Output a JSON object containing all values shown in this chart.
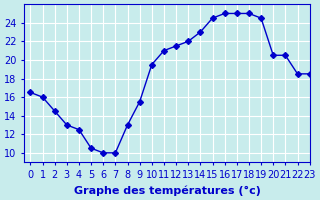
{
  "hours": [
    0,
    1,
    2,
    3,
    4,
    5,
    6,
    7,
    8,
    9,
    10,
    11,
    12,
    13,
    14,
    15,
    16,
    17,
    18,
    19,
    20,
    21,
    22,
    23
  ],
  "temperatures": [
    16.5,
    16.0,
    14.5,
    13.0,
    12.5,
    10.5,
    10.0,
    10.0,
    13.0,
    15.5,
    19.5,
    21.0,
    21.5,
    22.0,
    23.0,
    24.5,
    25.0,
    25.0,
    25.0,
    24.5,
    20.5,
    20.5,
    18.5,
    18.5
  ],
  "line_color": "#0000cc",
  "marker": "D",
  "marker_size": 3,
  "bg_color": "#c8ecec",
  "grid_color": "#ffffff",
  "xlabel": "Graphe des températures (°c)",
  "ylim": [
    9,
    26
  ],
  "xlim": [
    -0.5,
    23
  ],
  "yticks": [
    10,
    12,
    14,
    16,
    18,
    20,
    22,
    24
  ],
  "xticks": [
    0,
    1,
    2,
    3,
    4,
    5,
    6,
    7,
    8,
    9,
    10,
    11,
    12,
    13,
    14,
    15,
    16,
    17,
    18,
    19,
    20,
    21,
    22,
    23
  ],
  "xlabel_fontsize": 8,
  "tick_fontsize": 7,
  "tick_color": "#0000cc",
  "axis_color": "#0000cc"
}
